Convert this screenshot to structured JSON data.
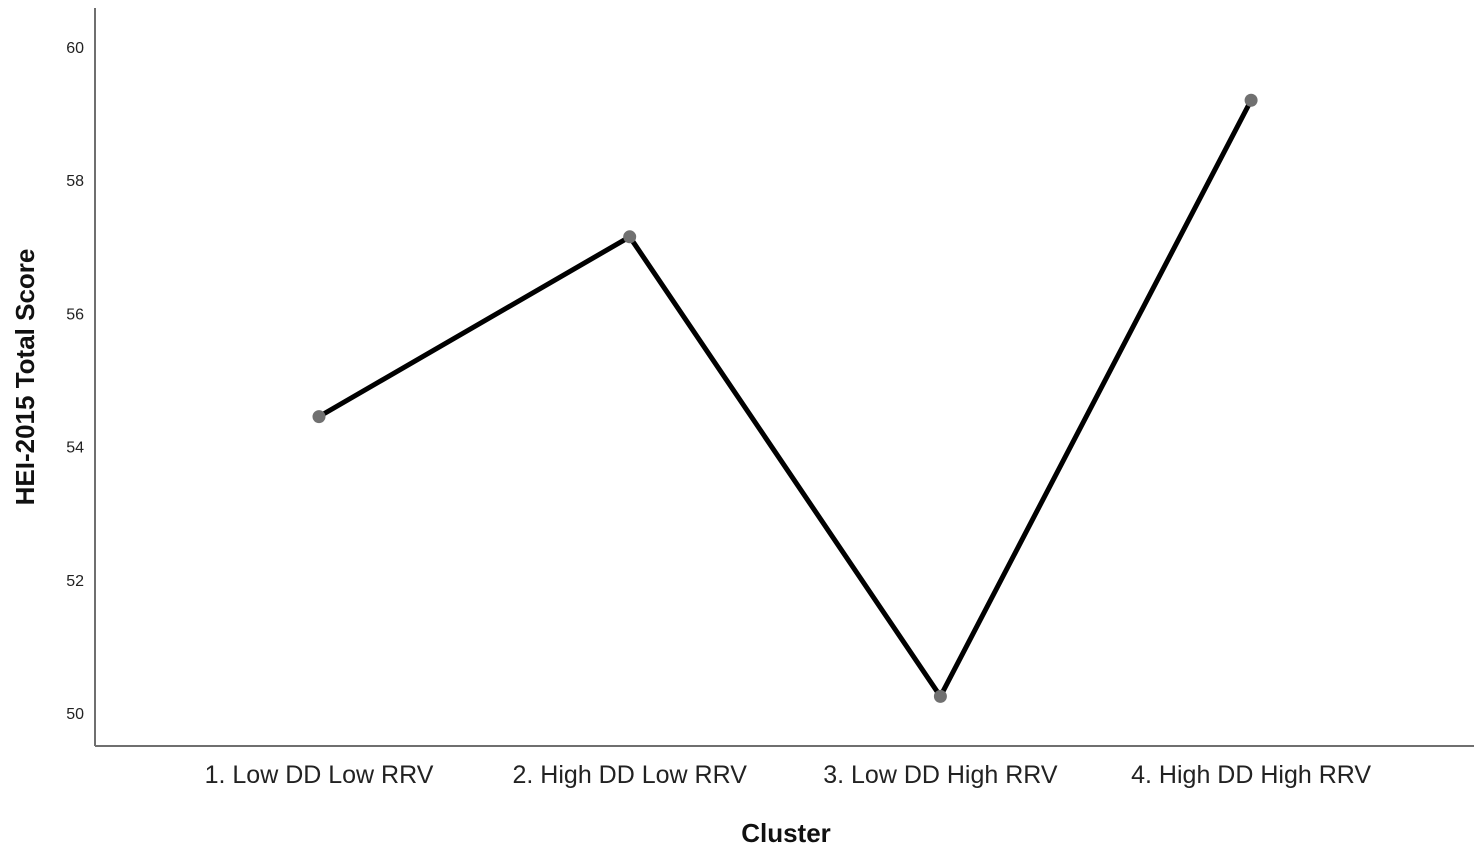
{
  "chart_data": {
    "type": "line",
    "title": "",
    "xlabel": "Cluster",
    "ylabel": "HEI-2015 Total Score",
    "categories": [
      "1. Low DD Low RRV",
      "2. High DD Low RRV",
      "3. Low DD High RRV",
      "4. High DD High RRV"
    ],
    "series": [
      {
        "values": [
          54.45,
          57.15,
          50.25,
          59.2
        ]
      }
    ],
    "ylim": [
      50,
      60
    ],
    "yticks": [
      50,
      52,
      54,
      56,
      58,
      60
    ],
    "grid": false,
    "legend": "none",
    "colors": {
      "line": "#000000",
      "marker": "#707070",
      "axis": "#6f6f6f"
    }
  }
}
